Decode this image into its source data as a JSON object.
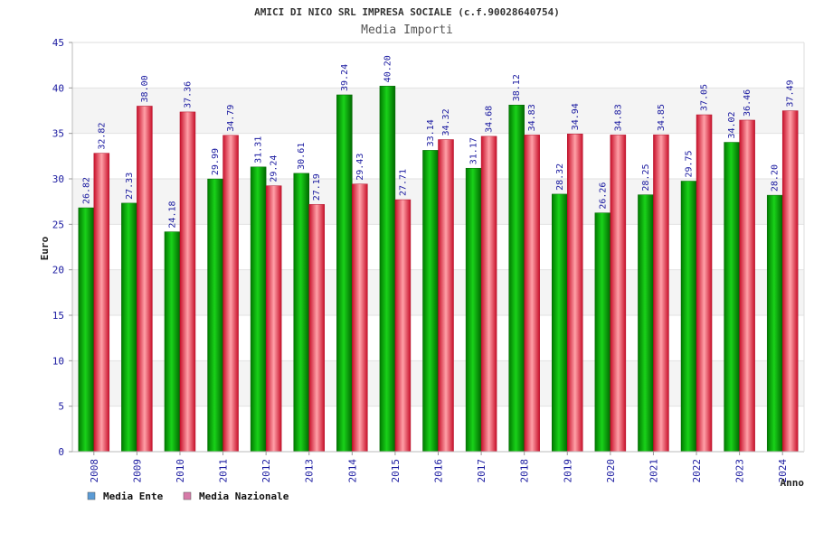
{
  "chart_data": {
    "type": "bar",
    "title": "AMICI DI NICO SRL IMPRESA SOCIALE (c.f.90028640754)",
    "subtitle": "Media Importi",
    "xlabel": "Anno",
    "ylabel": "Euro",
    "ylim": [
      0,
      45
    ],
    "yticks": [
      0,
      5,
      10,
      15,
      20,
      25,
      30,
      35,
      40,
      45
    ],
    "grid": true,
    "legend_position": "bottom-left",
    "categories": [
      "2008",
      "2009",
      "2010",
      "2011",
      "2012",
      "2013",
      "2014",
      "2015",
      "2016",
      "2017",
      "2018",
      "2019",
      "2020",
      "2021",
      "2022",
      "2023",
      "2024"
    ],
    "series": [
      {
        "name": "Media Ente",
        "color": "#00aa00",
        "legend_color": "#5b9bd5",
        "values": [
          26.82,
          27.33,
          24.18,
          29.99,
          31.31,
          30.61,
          39.24,
          40.2,
          33.14,
          31.17,
          38.12,
          28.32,
          26.26,
          28.25,
          29.75,
          34.02,
          28.2
        ],
        "labels": [
          "26.82",
          "27.33",
          "24.18",
          "29.99",
          "31.31",
          "30.61",
          "39.24",
          "40.20",
          "33.14",
          "31.17",
          "38.12",
          "28.32",
          "26.26",
          "28.25",
          "29.75",
          "34.02",
          "28.20"
        ]
      },
      {
        "name": "Media Nazionale",
        "color": "#e8283c",
        "legend_color": "#d77aa8",
        "values": [
          32.82,
          38.0,
          37.36,
          34.79,
          29.24,
          27.19,
          29.43,
          27.71,
          34.32,
          34.68,
          34.83,
          34.94,
          34.83,
          34.85,
          37.05,
          36.46,
          37.49
        ],
        "labels": [
          "32.82",
          "38.00",
          "37.36",
          "34.79",
          "29.24",
          "27.19",
          "29.43",
          "27.71",
          "34.32",
          "34.68",
          "34.83",
          "34.94",
          "34.83",
          "34.85",
          "37.05",
          "36.46",
          "37.49"
        ]
      }
    ]
  }
}
